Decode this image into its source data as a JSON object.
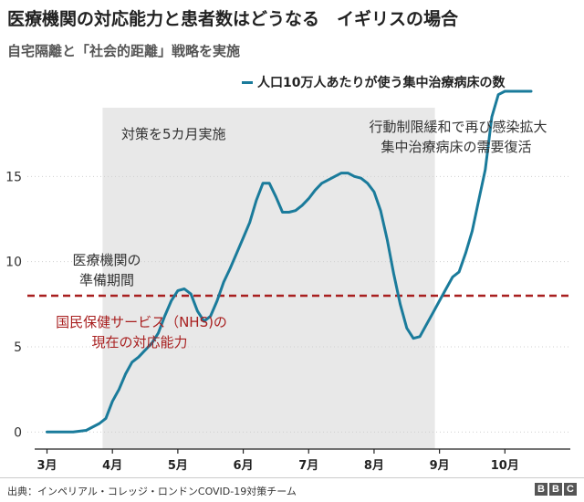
{
  "header": {
    "title": "医療機関の対応能力と患者数はどうなる　イギリスの場合",
    "subtitle": "自宅隔離と「社会的距離」戦略を実施"
  },
  "legend": {
    "label": "人口10万人あたりが使う集中治療病床の数"
  },
  "footer": {
    "source": "出典：インペリアル・コレッジ・ロンドンCOVID-19対策チーム",
    "logo": [
      "B",
      "B",
      "C"
    ]
  },
  "colors": {
    "line": "#1a7b9b",
    "capacity": "#a81f1f",
    "shade": "#e8e8e8",
    "axis": "#222222",
    "grid": "#d0d0d0"
  },
  "chart_data": {
    "type": "line",
    "title": "医療機関の対応能力と患者数はどうなる　イギリスの場合",
    "x_ticks": [
      {
        "x": 3,
        "label": "3月"
      },
      {
        "x": 4,
        "label": "4月"
      },
      {
        "x": 5,
        "label": "5月"
      },
      {
        "x": 6,
        "label": "6月"
      },
      {
        "x": 7,
        "label": "7月"
      },
      {
        "x": 8,
        "label": "8月"
      },
      {
        "x": 9,
        "label": "9月"
      },
      {
        "x": 10,
        "label": "10月"
      }
    ],
    "xlim": [
      2.7,
      11.0
    ],
    "y_ticks": [
      0,
      5,
      10,
      15
    ],
    "ylim": [
      -1,
      20
    ],
    "series": [
      {
        "name": "人口10万人あたりが使う集中治療病床の数",
        "x": [
          3.0,
          3.2,
          3.4,
          3.6,
          3.8,
          3.9,
          4.0,
          4.1,
          4.2,
          4.3,
          4.4,
          4.5,
          4.6,
          4.7,
          4.8,
          4.9,
          5.0,
          5.1,
          5.2,
          5.3,
          5.4,
          5.5,
          5.6,
          5.7,
          5.8,
          5.9,
          6.0,
          6.1,
          6.2,
          6.3,
          6.4,
          6.5,
          6.6,
          6.7,
          6.8,
          6.9,
          7.0,
          7.1,
          7.2,
          7.3,
          7.4,
          7.5,
          7.6,
          7.7,
          7.8,
          7.9,
          8.0,
          8.1,
          8.2,
          8.3,
          8.4,
          8.5,
          8.6,
          8.7,
          8.8,
          8.9,
          9.0,
          9.1,
          9.2,
          9.3,
          9.4,
          9.5,
          9.6,
          9.7,
          9.8,
          9.9,
          10.0,
          10.1,
          10.2,
          10.3,
          10.35,
          10.4
        ],
        "values": [
          0.0,
          0.0,
          0.0,
          0.1,
          0.5,
          0.8,
          1.8,
          2.5,
          3.4,
          4.1,
          4.4,
          4.8,
          5.2,
          5.8,
          6.8,
          7.7,
          8.3,
          8.4,
          8.1,
          7.1,
          6.5,
          6.8,
          7.7,
          8.8,
          9.6,
          10.5,
          11.4,
          12.3,
          13.6,
          14.6,
          14.6,
          13.8,
          12.9,
          12.9,
          13.0,
          13.3,
          13.7,
          14.2,
          14.6,
          14.8,
          15.0,
          15.2,
          15.2,
          15.0,
          14.9,
          14.6,
          14.1,
          13.0,
          11.3,
          9.3,
          7.5,
          6.1,
          5.5,
          5.6,
          6.3,
          7.0,
          7.7,
          8.4,
          9.1,
          9.4,
          10.5,
          11.8,
          13.6,
          15.4,
          18.5,
          19.8,
          20.0,
          20.0,
          20.0,
          20.0,
          20.0,
          20.0
        ]
      }
    ],
    "capacity_line": {
      "value": 8.0,
      "label_line1": "国民保健サービス（NHS)の",
      "label_line2": "現在の対応能力"
    },
    "shaded_region": {
      "x_start": 3.85,
      "x_end": 8.93,
      "label": "対策を5カ月実施"
    },
    "annotations": [
      {
        "text_line1": "医療機関の",
        "text_line2": "準備期間"
      },
      {
        "text_line1": "行動制限緩和で再び感染拡大",
        "text_line2": "集中治療病床の需要復活"
      }
    ]
  }
}
